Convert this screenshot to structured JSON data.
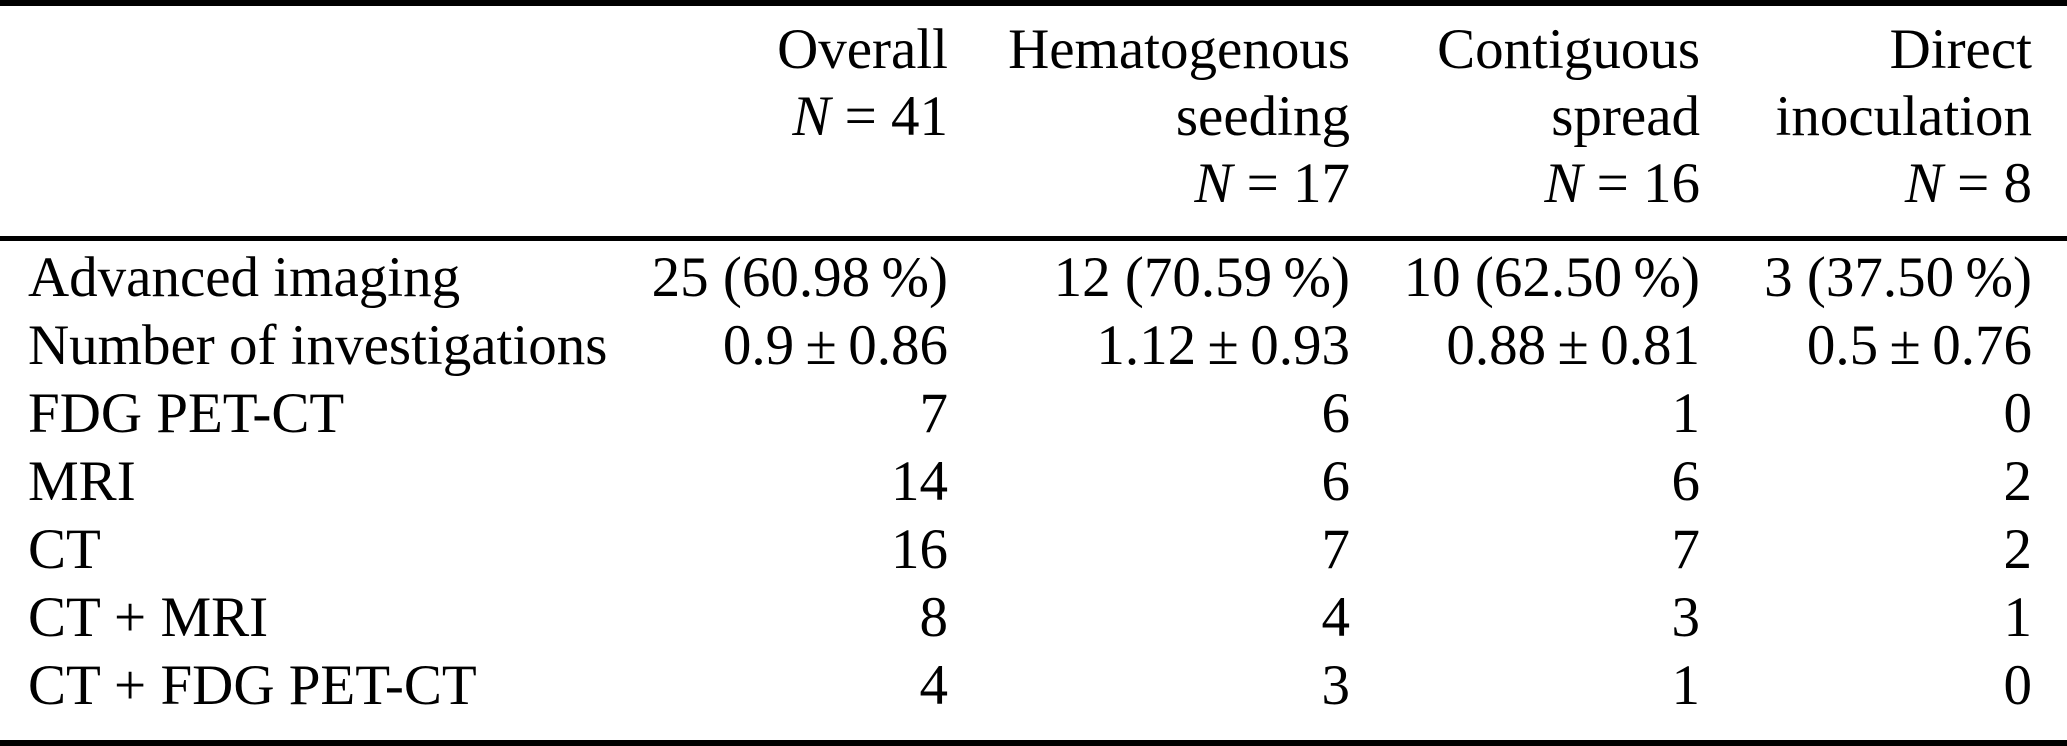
{
  "table": {
    "header": {
      "columns": [
        {
          "line1": "Overall",
          "n_symbol": "N",
          "n_rest": " = 41"
        },
        {
          "line1": "Hematogenous",
          "line2": "seeding",
          "n_symbol": "N",
          "n_rest": " = 17"
        },
        {
          "line1": "Contiguous",
          "line2": "spread",
          "n_symbol": "N",
          "n_rest": " = 16"
        },
        {
          "line1": "Direct",
          "line2": "inoculation",
          "n_symbol": "N",
          "n_rest": " = 8"
        }
      ]
    },
    "rows": [
      {
        "label": "Advanced imaging",
        "values": [
          "25 (60.98 %)",
          "12 (70.59 %)",
          "10 (62.50 %)",
          "3 (37.50 %)"
        ]
      },
      {
        "label": "Number of investigations",
        "values": [
          "0.9 ± 0.86",
          "1.12 ± 0.93",
          "0.88 ± 0.81",
          "0.5 ± 0.76"
        ]
      },
      {
        "label": "FDG PET-CT",
        "values": [
          "7",
          "6",
          "1",
          "0"
        ]
      },
      {
        "label": "MRI",
        "values": [
          "14",
          "6",
          "6",
          "2"
        ]
      },
      {
        "label": "CT",
        "values": [
          "16",
          "7",
          "7",
          "2"
        ]
      },
      {
        "label": "CT + MRI",
        "values": [
          "8",
          "4",
          "3",
          "1"
        ]
      },
      {
        "label": "CT + FDG PET-CT",
        "values": [
          "4",
          "3",
          "1",
          "0"
        ]
      }
    ]
  }
}
